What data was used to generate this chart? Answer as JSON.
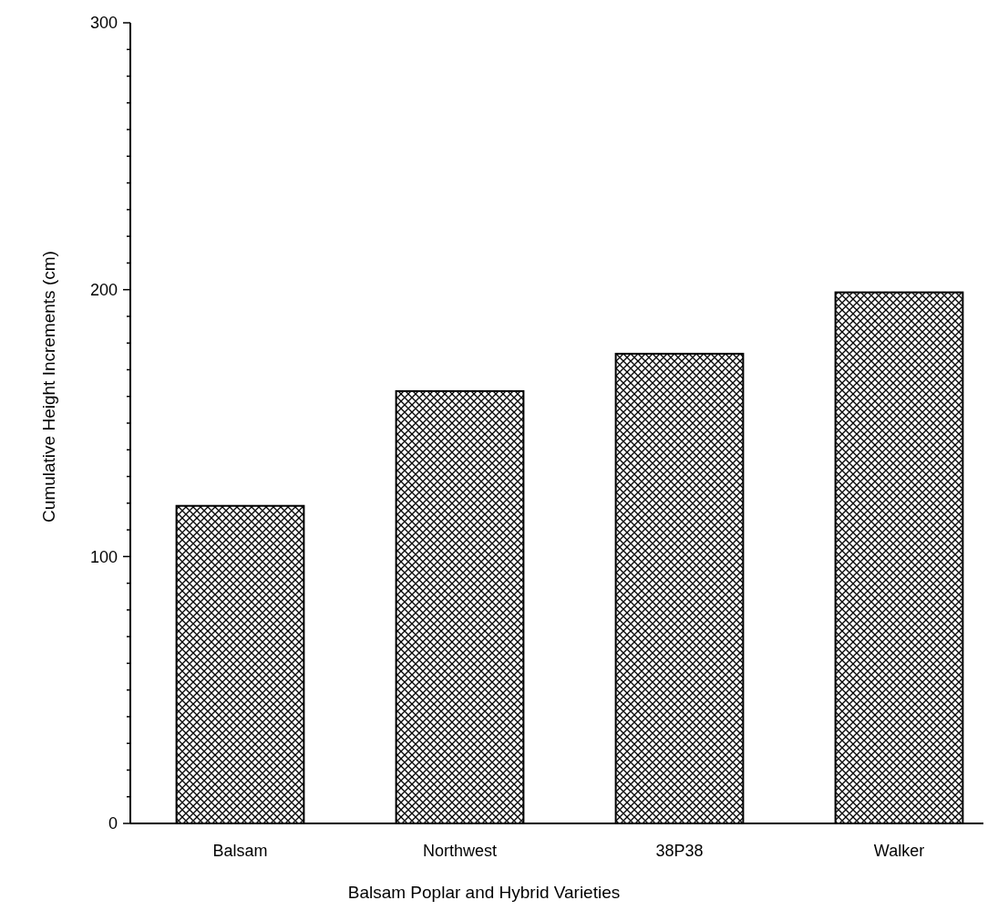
{
  "chart_data": {
    "type": "bar",
    "xlabel": "Balsam Poplar and Hybrid Varieties",
    "ylabel": "Cumulative Height Increments (cm)",
    "categories": [
      "Balsam",
      "Northwest",
      "38P38",
      "Walker"
    ],
    "values": [
      119,
      162,
      176,
      199
    ],
    "color": "#000000",
    "ylim": [
      0,
      300
    ],
    "yticks": [
      0,
      {
        "value": 10,
        "label": null
      },
      {
        "value": 20,
        "label": null
      },
      {
        "value": 30,
        "label": null
      },
      {
        "value": 40,
        "label": null
      },
      {
        "value": 50,
        "label": null
      },
      {
        "value": 60,
        "label": null
      },
      {
        "value": 70,
        "label": null
      },
      {
        "value": 80,
        "label": null
      },
      {
        "value": 90,
        "label": null
      },
      100,
      {
        "value": 110,
        "label": null
      },
      {
        "value": 120,
        "label": null
      },
      {
        "value": 130,
        "label": null
      },
      {
        "value": 140,
        "label": null
      },
      {
        "value": 150,
        "label": null
      },
      {
        "value": 160,
        "label": null
      },
      {
        "value": 170,
        "label": null
      },
      {
        "value": 180,
        "label": null
      },
      {
        "value": 190,
        "label": null
      },
      200,
      {
        "value": 210,
        "label": null
      },
      {
        "value": 220,
        "label": null
      },
      {
        "value": 230,
        "label": null
      },
      {
        "value": 240,
        "label": null
      },
      {
        "value": 250,
        "label": null
      },
      {
        "value": 260,
        "label": null
      },
      {
        "value": 270,
        "label": null
      },
      {
        "value": 280,
        "label": null
      },
      {
        "value": 290,
        "label": null
      },
      300
    ],
    "grid": false
  }
}
